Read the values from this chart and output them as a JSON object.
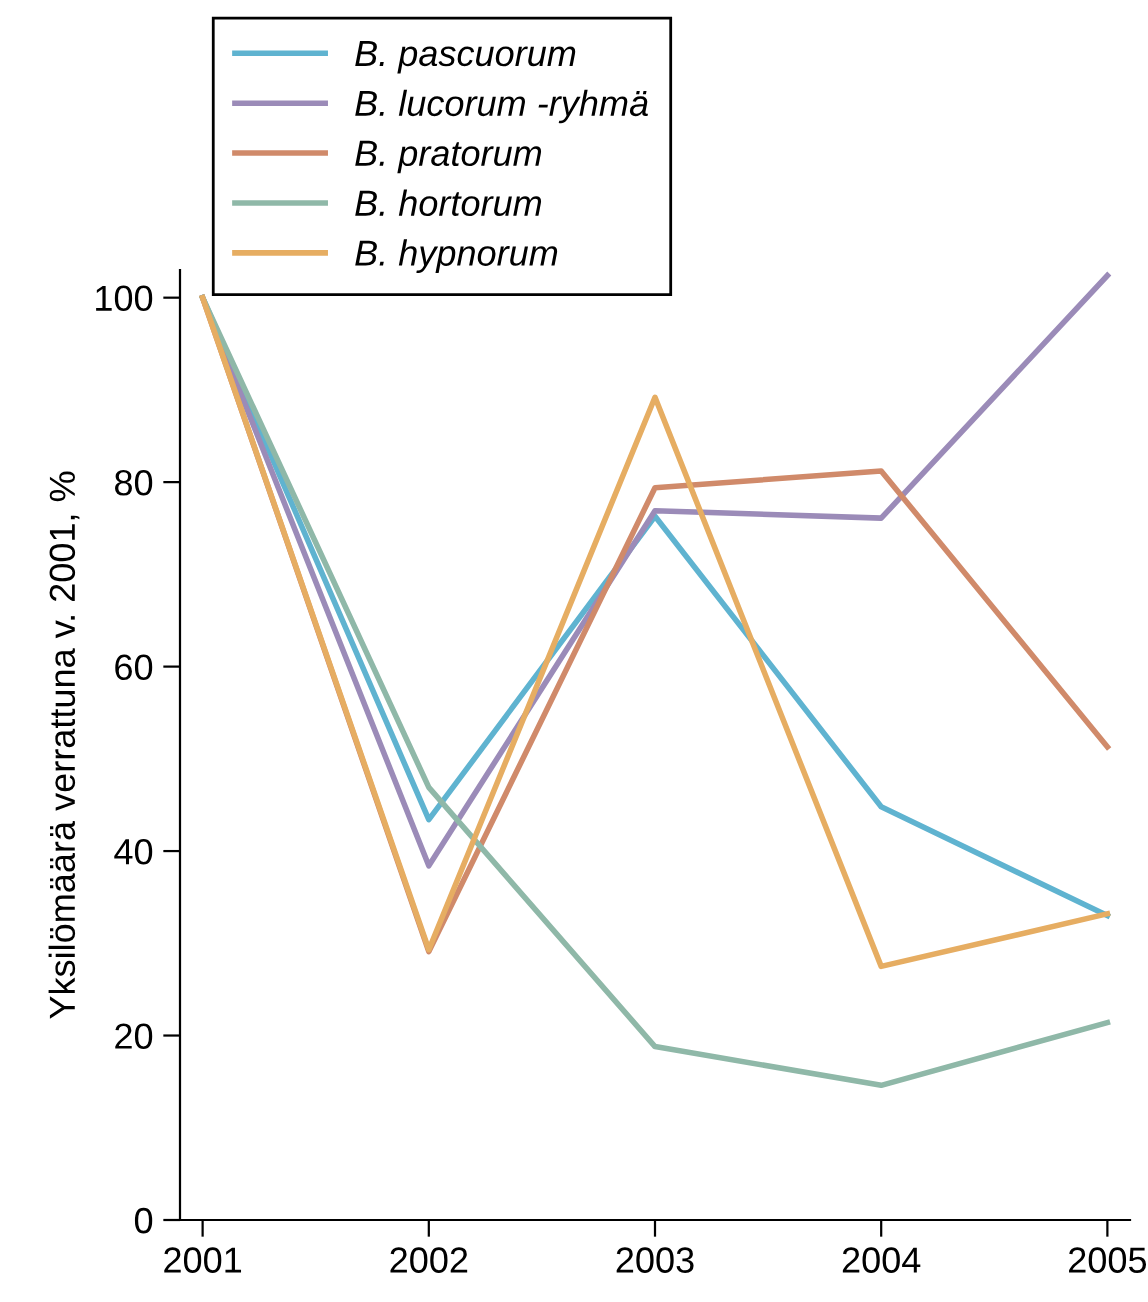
{
  "chart_data": {
    "type": "line",
    "ylabel": "Yksilömäärä verrattuna v. 2001, %",
    "x": [
      2001,
      2002,
      2003,
      2004,
      2005
    ],
    "xlim": [
      2000.9,
      2005.1
    ],
    "xticks": [
      2001,
      2002,
      2003,
      2004,
      2005
    ],
    "ylim": [
      0,
      103
    ],
    "yticks": [
      0,
      20,
      40,
      60,
      80,
      100
    ],
    "grid": false,
    "legend": "top",
    "marker": "none",
    "line_style": "solid",
    "series": [
      {
        "name": "B. pascuorum",
        "color": "#5fb3d0",
        "values": [
          100,
          43.4,
          76.3,
          44.8,
          33.0
        ]
      },
      {
        "name": "B. lucorum -ryhmä",
        "color": "#9b8bb8",
        "values": [
          100,
          38.4,
          76.9,
          76.1,
          102.4
        ]
      },
      {
        "name": "B. pratorum",
        "color": "#d08a6a",
        "values": [
          100,
          29.1,
          79.4,
          81.2,
          51.3
        ]
      },
      {
        "name": "B. hortorum",
        "color": "#8fb8a8",
        "values": [
          100,
          46.9,
          18.8,
          14.6,
          21.4
        ]
      },
      {
        "name": "B. hypnorum",
        "color": "#e6ad62",
        "values": [
          100,
          29.3,
          89.2,
          27.5,
          33.2
        ]
      }
    ]
  }
}
